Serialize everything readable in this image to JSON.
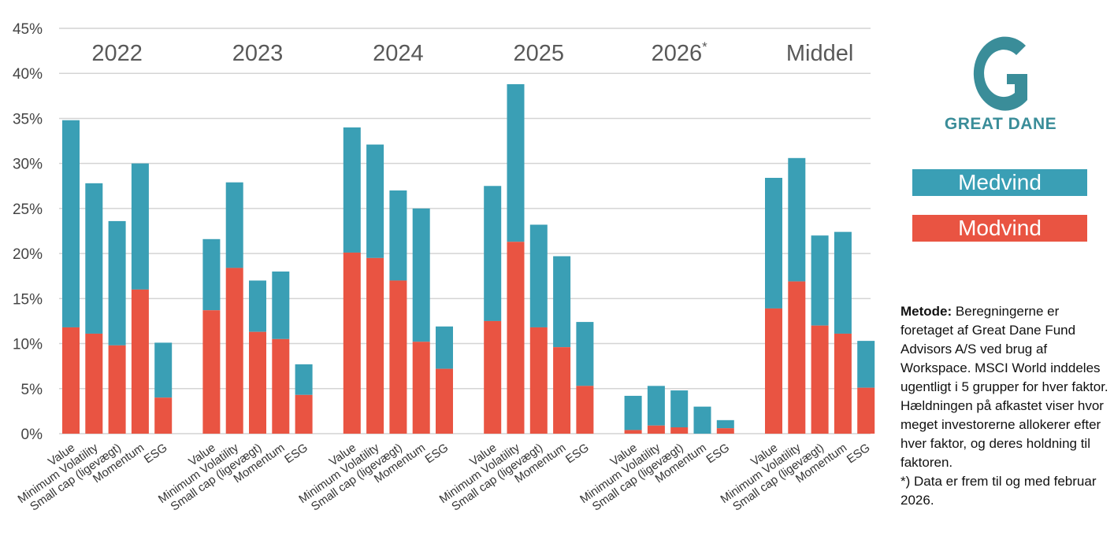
{
  "chart_data": {
    "type": "stacked-bar",
    "y_axis": {
      "min": 0,
      "max": 45,
      "step": 5,
      "tick_suffix": "%"
    },
    "grid": true,
    "factors": [
      "Value",
      "Minimum Volatility",
      "Small cap (ligevægt)",
      "Momentum",
      "ESG"
    ],
    "groups": [
      {
        "label": "2022",
        "label_main": "2022",
        "label_sup": "",
        "total": [
          34.8,
          27.8,
          23.6,
          30.0,
          10.1
        ],
        "modvind": [
          11.8,
          11.1,
          9.8,
          16.0,
          4.0
        ]
      },
      {
        "label": "2023",
        "label_main": "2023",
        "label_sup": "",
        "total": [
          21.6,
          27.9,
          17.0,
          18.0,
          7.7
        ],
        "modvind": [
          13.7,
          18.4,
          11.3,
          10.5,
          4.3
        ]
      },
      {
        "label": "2024",
        "label_main": "2024",
        "label_sup": "",
        "total": [
          34.0,
          32.1,
          27.0,
          25.0,
          11.9
        ],
        "modvind": [
          20.1,
          19.5,
          17.0,
          10.2,
          7.2
        ]
      },
      {
        "label": "2025",
        "label_main": "2025",
        "label_sup": "",
        "total": [
          27.5,
          38.8,
          23.2,
          19.7,
          12.4
        ],
        "modvind": [
          12.5,
          21.3,
          11.8,
          9.6,
          5.3
        ]
      },
      {
        "label": "2026*",
        "label_main": "2026",
        "label_sup": "*",
        "total": [
          4.2,
          5.3,
          4.8,
          3.0,
          1.5
        ],
        "modvind": [
          0.4,
          0.9,
          0.7,
          0.0,
          0.6
        ]
      },
      {
        "label": "Middel",
        "label_main": "Middel",
        "label_sup": "",
        "total": [
          28.4,
          30.6,
          22.0,
          22.4,
          10.3
        ],
        "modvind": [
          13.9,
          16.9,
          12.0,
          11.1,
          5.1
        ]
      }
    ],
    "series": [
      {
        "name": "Medvind",
        "color": "#3a9fb5"
      },
      {
        "name": "Modvind",
        "color": "#e95442"
      }
    ]
  },
  "logo": {
    "text": "GREAT DANE",
    "color": "#3a8d99"
  },
  "legend": {
    "medvind": "Medvind",
    "modvind": "Modvind"
  },
  "method": {
    "label": "Metode:",
    "text": " Beregningerne er foretaget af Great Dane Fund Advisors A/S ved brug af Workspace. MSCI World inddeles ugentligt i 5 grupper for hver faktor. Hældningen på afkastet viser hvor meget investorerne allokerer efter hver faktor, og deres holdning til faktoren.",
    "note": "*) Data er frem til og med februar 2026."
  }
}
